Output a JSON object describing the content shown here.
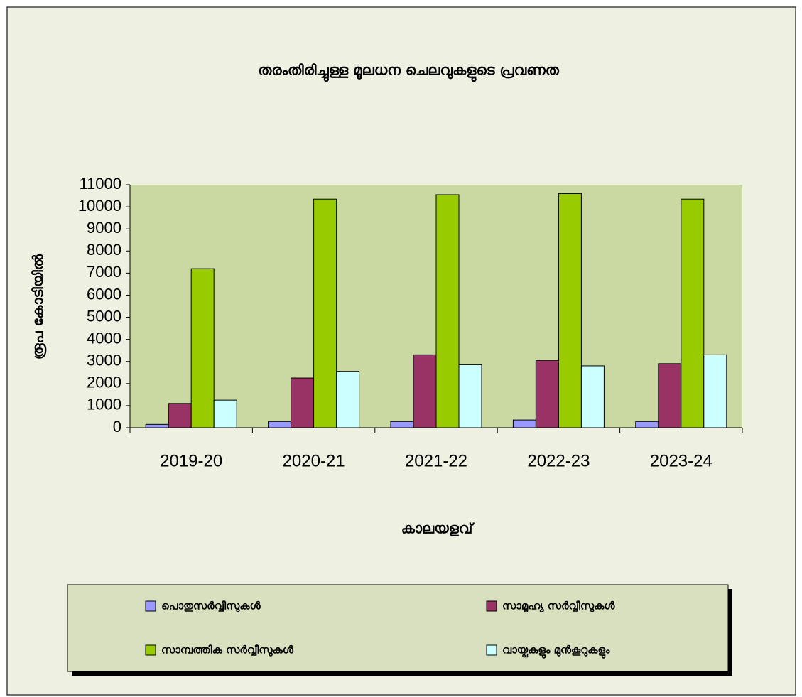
{
  "chart_data": {
    "type": "bar",
    "title": "തരംതിരിച്ചുള്ള    മൂലധന ചെലവുകളുടെ പ്രവണത",
    "x_label": "കാലയളവ്",
    "y_label": "രൂപ കോടിയിൽ",
    "categories": [
      "2019-20",
      "2020-21",
      "2021-22",
      "2022-23",
      "2023-24"
    ],
    "series": [
      {
        "name": "പൊതുസർവ്വീസുകൾ",
        "color": "#9999ff",
        "values": [
          150,
          280,
          280,
          350,
          280
        ]
      },
      {
        "name": "സാമൂഹ്യ സർവ്വീസുകൾ",
        "color": "#993366",
        "values": [
          1100,
          2250,
          3300,
          3050,
          2900
        ]
      },
      {
        "name": "സാമ്പത്തിക സർവ്വീസുകൾ",
        "color": "#99cc00",
        "values": [
          7200,
          10350,
          10550,
          10600,
          10350
        ]
      },
      {
        "name": "വായ്പകളും മുൻകൂറുകളും",
        "color": "#ccffff",
        "values": [
          1250,
          2550,
          2850,
          2800,
          3300
        ]
      }
    ],
    "ylim": [
      0,
      11000
    ],
    "yticks": [
      0,
      1000,
      2000,
      3000,
      4000,
      5000,
      6000,
      7000,
      8000,
      9000,
      10000,
      11000
    ],
    "grid": false,
    "legend": "bottom"
  }
}
